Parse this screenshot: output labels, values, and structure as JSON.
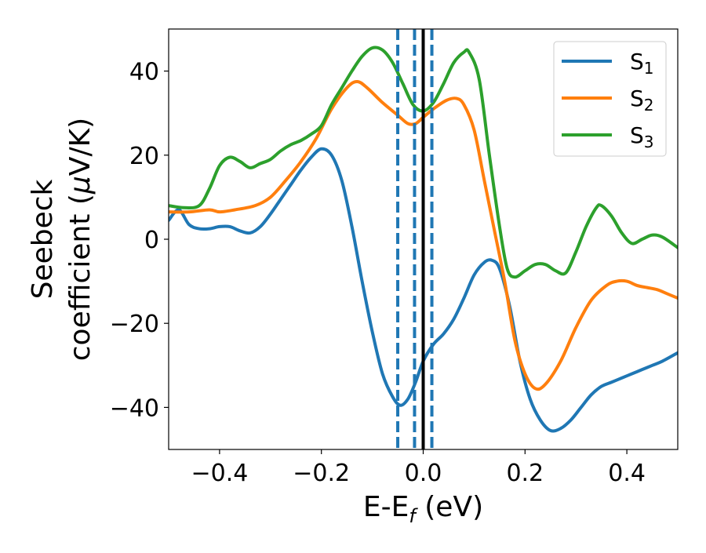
{
  "chart_data": {
    "type": "line",
    "xlabel_main": "E-E",
    "xlabel_sub": "f",
    "xlabel_unit": " (eV)",
    "ylabel_line1": "Seebeck",
    "ylabel_line2_prefix": "coefficient  (",
    "ylabel_mu": "μ",
    "ylabel_line2_suffix": "V/K)",
    "xlim": [
      -0.5,
      0.5
    ],
    "ylim": [
      -50,
      50
    ],
    "x_ticks": [
      -0.4,
      -0.2,
      0.0,
      0.2,
      0.4
    ],
    "x_tick_labels": [
      "−0.4",
      "−0.2",
      "0.0",
      "0.2",
      "0.4"
    ],
    "y_ticks": [
      -40,
      -20,
      0,
      20,
      40
    ],
    "y_tick_labels": [
      "−40",
      "−20",
      "0",
      "20",
      "40"
    ],
    "grid": false,
    "legend_position": "top-right",
    "vertical_lines": [
      {
        "x": 0.0,
        "style": "solid",
        "color": "#000000"
      },
      {
        "x": -0.05,
        "style": "dashed",
        "color": "#1f77b4"
      },
      {
        "x": -0.017,
        "style": "dashed",
        "color": "#1f77b4"
      },
      {
        "x": 0.017,
        "style": "dashed",
        "color": "#1f77b4"
      }
    ],
    "series": [
      {
        "name_main": "S",
        "name_sub": "1",
        "color": "#1f77b4",
        "points": [
          [
            -0.5,
            4.5
          ],
          [
            -0.48,
            7
          ],
          [
            -0.46,
            3.5
          ],
          [
            -0.44,
            2.5
          ],
          [
            -0.42,
            2.5
          ],
          [
            -0.4,
            3
          ],
          [
            -0.38,
            3
          ],
          [
            -0.36,
            2
          ],
          [
            -0.34,
            1.5
          ],
          [
            -0.32,
            3
          ],
          [
            -0.3,
            6
          ],
          [
            -0.28,
            9.5
          ],
          [
            -0.26,
            13
          ],
          [
            -0.24,
            16.5
          ],
          [
            -0.22,
            19.5
          ],
          [
            -0.2,
            21.5
          ],
          [
            -0.18,
            20
          ],
          [
            -0.16,
            14
          ],
          [
            -0.14,
            3
          ],
          [
            -0.12,
            -10
          ],
          [
            -0.1,
            -22
          ],
          [
            -0.08,
            -32
          ],
          [
            -0.06,
            -37.5
          ],
          [
            -0.045,
            -39.5
          ],
          [
            -0.03,
            -38
          ],
          [
            -0.015,
            -34
          ],
          [
            0.0,
            -29
          ],
          [
            0.02,
            -25
          ],
          [
            0.04,
            -22.5
          ],
          [
            0.06,
            -19
          ],
          [
            0.08,
            -14
          ],
          [
            0.1,
            -8.5
          ],
          [
            0.12,
            -5.5
          ],
          [
            0.135,
            -5
          ],
          [
            0.15,
            -7
          ],
          [
            0.17,
            -16
          ],
          [
            0.19,
            -29
          ],
          [
            0.21,
            -38
          ],
          [
            0.23,
            -43
          ],
          [
            0.25,
            -45.5
          ],
          [
            0.27,
            -45
          ],
          [
            0.29,
            -43
          ],
          [
            0.31,
            -40
          ],
          [
            0.33,
            -37
          ],
          [
            0.35,
            -35
          ],
          [
            0.37,
            -34
          ],
          [
            0.39,
            -33
          ],
          [
            0.41,
            -32
          ],
          [
            0.43,
            -31
          ],
          [
            0.45,
            -30
          ],
          [
            0.47,
            -29
          ],
          [
            0.5,
            -27
          ]
        ]
      },
      {
        "name_main": "S",
        "name_sub": "2",
        "color": "#ff7f0e",
        "points": [
          [
            -0.5,
            6.5
          ],
          [
            -0.46,
            6.5
          ],
          [
            -0.42,
            7
          ],
          [
            -0.4,
            6.5
          ],
          [
            -0.37,
            7
          ],
          [
            -0.33,
            8
          ],
          [
            -0.3,
            10
          ],
          [
            -0.27,
            14
          ],
          [
            -0.24,
            18.5
          ],
          [
            -0.21,
            24
          ],
          [
            -0.18,
            31
          ],
          [
            -0.15,
            36
          ],
          [
            -0.13,
            37.5
          ],
          [
            -0.11,
            36
          ],
          [
            -0.08,
            32.5
          ],
          [
            -0.05,
            29.5
          ],
          [
            -0.03,
            27.5
          ],
          [
            -0.015,
            27.5
          ],
          [
            0.0,
            29
          ],
          [
            0.02,
            31
          ],
          [
            0.045,
            33
          ],
          [
            0.065,
            33.5
          ],
          [
            0.08,
            32
          ],
          [
            0.1,
            26
          ],
          [
            0.12,
            14
          ],
          [
            0.14,
            2
          ],
          [
            0.16,
            -10
          ],
          [
            0.18,
            -24
          ],
          [
            0.2,
            -32
          ],
          [
            0.22,
            -35.5
          ],
          [
            0.24,
            -34.5
          ],
          [
            0.27,
            -29
          ],
          [
            0.3,
            -21
          ],
          [
            0.33,
            -14.5
          ],
          [
            0.36,
            -11
          ],
          [
            0.38,
            -10
          ],
          [
            0.4,
            -10
          ],
          [
            0.42,
            -11
          ],
          [
            0.44,
            -11.5
          ],
          [
            0.46,
            -12
          ],
          [
            0.48,
            -13
          ],
          [
            0.5,
            -14
          ]
        ]
      },
      {
        "name_main": "S",
        "name_sub": "3",
        "color": "#2ca02c",
        "points": [
          [
            -0.5,
            8
          ],
          [
            -0.47,
            7.5
          ],
          [
            -0.44,
            8
          ],
          [
            -0.42,
            12
          ],
          [
            -0.4,
            17.5
          ],
          [
            -0.38,
            19.5
          ],
          [
            -0.36,
            18.5
          ],
          [
            -0.34,
            17
          ],
          [
            -0.32,
            18
          ],
          [
            -0.3,
            19
          ],
          [
            -0.28,
            21
          ],
          [
            -0.26,
            22.5
          ],
          [
            -0.24,
            23.5
          ],
          [
            -0.22,
            25
          ],
          [
            -0.2,
            27
          ],
          [
            -0.18,
            32
          ],
          [
            -0.16,
            36
          ],
          [
            -0.14,
            40
          ],
          [
            -0.12,
            43.5
          ],
          [
            -0.1,
            45.5
          ],
          [
            -0.08,
            45
          ],
          [
            -0.06,
            42
          ],
          [
            -0.04,
            37
          ],
          [
            -0.02,
            32
          ],
          [
            0.0,
            30.5
          ],
          [
            0.02,
            32.5
          ],
          [
            0.04,
            37
          ],
          [
            0.06,
            42
          ],
          [
            0.08,
            44.5
          ],
          [
            0.09,
            44.5
          ],
          [
            0.11,
            38
          ],
          [
            0.13,
            20
          ],
          [
            0.15,
            3
          ],
          [
            0.165,
            -7
          ],
          [
            0.18,
            -9
          ],
          [
            0.2,
            -7.5
          ],
          [
            0.22,
            -6
          ],
          [
            0.24,
            -6
          ],
          [
            0.26,
            -7.5
          ],
          [
            0.28,
            -8
          ],
          [
            0.3,
            -3
          ],
          [
            0.32,
            3
          ],
          [
            0.34,
            7.5
          ],
          [
            0.35,
            8
          ],
          [
            0.37,
            5.5
          ],
          [
            0.39,
            1.5
          ],
          [
            0.41,
            -1
          ],
          [
            0.43,
            0
          ],
          [
            0.45,
            1
          ],
          [
            0.47,
            0.5
          ],
          [
            0.5,
            -2
          ]
        ]
      }
    ]
  }
}
